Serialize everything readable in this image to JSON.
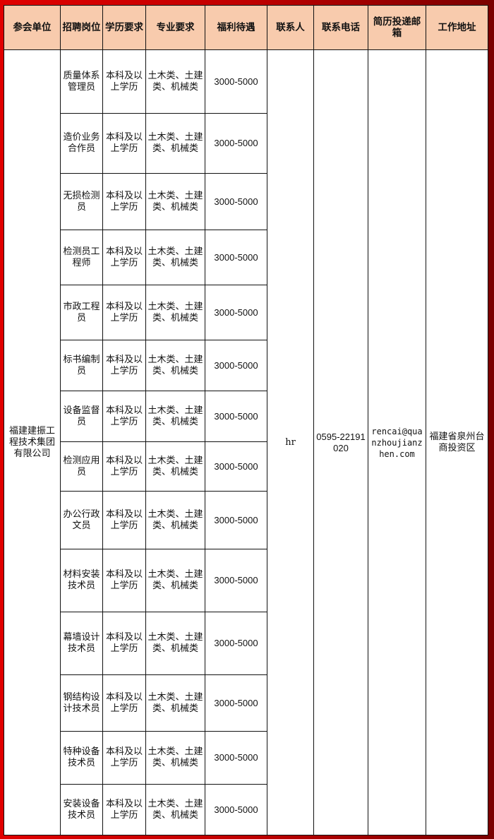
{
  "headers": [
    "参会单位",
    "招聘岗位",
    "学历要求",
    "专业要求",
    "福利待遇",
    "联系人",
    "联系电话",
    "简历投递邮箱",
    "工作地址"
  ],
  "company": "福建建振工程技术集团有限公司",
  "contact": "hr",
  "phone": "0595-22191020",
  "email": "rencai@quanzhoujianzhen.com",
  "address": "福建省泉州台商投资区",
  "positions": [
    {
      "title": "质量体系管理员",
      "education": "本科及以上学历",
      "major": "土木类、土建类、机械类",
      "salary": "3000-5000"
    },
    {
      "title": "造价业务合作员",
      "education": "本科及以上学历",
      "major": "土木类、土建类、机械类",
      "salary": "3000-5000"
    },
    {
      "title": "无损检测员",
      "education": "本科及以上学历",
      "major": "土木类、土建类、机械类",
      "salary": "3000-5000"
    },
    {
      "title": "检测员工程师",
      "education": "本科及以上学历",
      "major": "土木类、土建类、机械类",
      "salary": "3000-5000"
    },
    {
      "title": "市政工程员",
      "education": "本科及以上学历",
      "major": "土木类、土建类、机械类",
      "salary": "3000-5000"
    },
    {
      "title": "标书编制员",
      "education": "本科及以上学历",
      "major": "土木类、土建类、机械类",
      "salary": "3000-5000"
    },
    {
      "title": "设备监督员",
      "education": "本科及以上学历",
      "major": "土木类、土建类、机械类",
      "salary": "3000-5000"
    },
    {
      "title": "检测应用员",
      "education": "本科及以上学历",
      "major": "土木类、土建类、机械类",
      "salary": "3000-5000"
    },
    {
      "title": "办公行政文员",
      "education": "本科及以上学历",
      "major": "土木类、土建类、机械类",
      "salary": "3000-5000"
    },
    {
      "title": "材料安装技术员",
      "education": "本科及以上学历",
      "major": "土木类、土建类、机械类",
      "salary": "3000-5000"
    },
    {
      "title": "幕墙设计技术员",
      "education": "本科及以上学历",
      "major": "土木类、土建类、机械类",
      "salary": "3000-5000"
    },
    {
      "title": "钢结构设计技术员",
      "education": "本科及以上学历",
      "major": "土木类、土建类、机械类",
      "salary": "3000-5000"
    },
    {
      "title": "特种设备技术员",
      "education": "本科及以上学历",
      "major": "土木类、土建类、机械类",
      "salary": "3000-5000"
    },
    {
      "title": "安装设备技术员",
      "education": "本科及以上学历",
      "major": "土木类、土建类、机械类",
      "salary": "3000-5000"
    }
  ]
}
